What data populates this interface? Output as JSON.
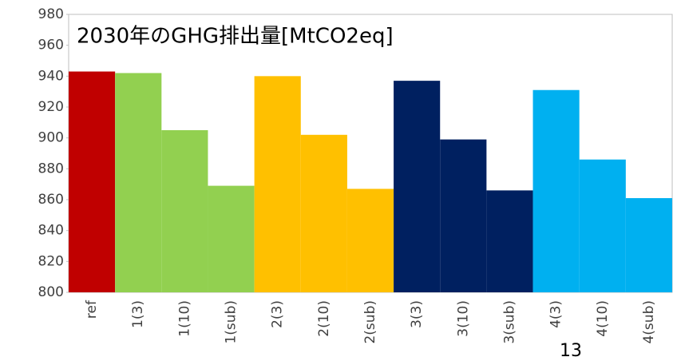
{
  "chart_data": {
    "type": "bar",
    "title": "2030年のGHG排出量[MtCO2eq]",
    "categories": [
      "ref",
      "1(3)",
      "1(10)",
      "1(sub)",
      "2(3)",
      "2(10)",
      "2(sub)",
      "3(3)",
      "3(10)",
      "3(sub)",
      "4(3)",
      "4(10)",
      "4(sub)"
    ],
    "values": [
      943,
      942,
      905,
      869,
      940,
      902,
      867,
      937,
      899,
      866,
      931,
      886,
      861
    ],
    "colors": [
      "#c00000",
      "#92d050",
      "#92d050",
      "#92d050",
      "#ffc000",
      "#ffc000",
      "#ffc000",
      "#002060",
      "#002060",
      "#002060",
      "#00b0f0",
      "#00b0f0",
      "#00b0f0"
    ],
    "ylim": [
      800,
      980
    ],
    "yticks": [
      800,
      820,
      840,
      860,
      880,
      900,
      920,
      940,
      960,
      980
    ],
    "grid": false
  },
  "page_number": "13"
}
